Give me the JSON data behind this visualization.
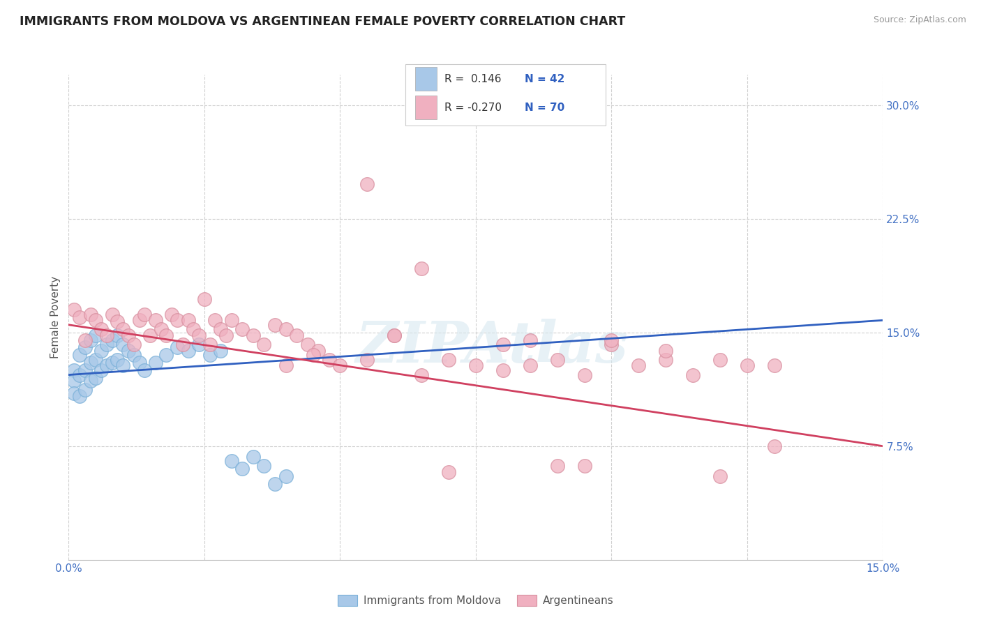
{
  "title": "IMMIGRANTS FROM MOLDOVA VS ARGENTINEAN FEMALE POVERTY CORRELATION CHART",
  "source_text": "Source: ZipAtlas.com",
  "ylabel": "Female Poverty",
  "xlim": [
    0.0,
    0.15
  ],
  "ylim": [
    0.0,
    0.32
  ],
  "yticks": [
    0.075,
    0.15,
    0.225,
    0.3
  ],
  "ytick_labels": [
    "7.5%",
    "15.0%",
    "22.5%",
    "30.0%"
  ],
  "xticks": [
    0.0,
    0.025,
    0.05,
    0.075,
    0.1,
    0.125,
    0.15
  ],
  "xtick_labels": [
    "0.0%",
    "",
    "",
    "",
    "",
    "",
    "15.0%"
  ],
  "legend_r1": "R =  0.146",
  "legend_n1": "N = 42",
  "legend_r2": "R = -0.270",
  "legend_n2": "N = 70",
  "color_blue": "#a8c8e8",
  "color_pink": "#f0b0c0",
  "color_blue_line": "#3060c0",
  "color_pink_line": "#d04060",
  "color_blue_text": "#3060c0",
  "watermark": "ZIPAtlas",
  "blue_scatter_x": [
    0.001,
    0.001,
    0.001,
    0.002,
    0.002,
    0.002,
    0.003,
    0.003,
    0.003,
    0.004,
    0.004,
    0.004,
    0.005,
    0.005,
    0.005,
    0.006,
    0.006,
    0.007,
    0.007,
    0.008,
    0.008,
    0.009,
    0.009,
    0.01,
    0.01,
    0.011,
    0.012,
    0.013,
    0.014,
    0.016,
    0.018,
    0.02,
    0.022,
    0.024,
    0.026,
    0.028,
    0.03,
    0.032,
    0.034,
    0.036,
    0.038,
    0.04
  ],
  "blue_scatter_y": [
    0.125,
    0.118,
    0.11,
    0.135,
    0.122,
    0.108,
    0.14,
    0.125,
    0.112,
    0.145,
    0.13,
    0.118,
    0.148,
    0.132,
    0.12,
    0.138,
    0.125,
    0.142,
    0.128,
    0.145,
    0.13,
    0.148,
    0.132,
    0.142,
    0.128,
    0.138,
    0.135,
    0.13,
    0.125,
    0.13,
    0.135,
    0.14,
    0.138,
    0.142,
    0.135,
    0.138,
    0.065,
    0.06,
    0.068,
    0.062,
    0.05,
    0.055
  ],
  "pink_scatter_x": [
    0.001,
    0.002,
    0.003,
    0.004,
    0.005,
    0.006,
    0.007,
    0.008,
    0.009,
    0.01,
    0.011,
    0.012,
    0.013,
    0.014,
    0.015,
    0.016,
    0.017,
    0.018,
    0.019,
    0.02,
    0.021,
    0.022,
    0.023,
    0.024,
    0.025,
    0.026,
    0.027,
    0.028,
    0.029,
    0.03,
    0.032,
    0.034,
    0.036,
    0.038,
    0.04,
    0.042,
    0.044,
    0.046,
    0.048,
    0.05,
    0.055,
    0.06,
    0.065,
    0.07,
    0.075,
    0.08,
    0.085,
    0.09,
    0.095,
    0.1,
    0.105,
    0.11,
    0.115,
    0.12,
    0.125,
    0.13,
    0.055,
    0.065,
    0.085,
    0.095,
    0.04,
    0.045,
    0.06,
    0.07,
    0.08,
    0.09,
    0.1,
    0.11,
    0.12,
    0.13
  ],
  "pink_scatter_y": [
    0.165,
    0.16,
    0.145,
    0.162,
    0.158,
    0.152,
    0.148,
    0.162,
    0.157,
    0.152,
    0.148,
    0.142,
    0.158,
    0.162,
    0.148,
    0.158,
    0.152,
    0.148,
    0.162,
    0.158,
    0.142,
    0.158,
    0.152,
    0.148,
    0.172,
    0.142,
    0.158,
    0.152,
    0.148,
    0.158,
    0.152,
    0.148,
    0.142,
    0.155,
    0.152,
    0.148,
    0.142,
    0.138,
    0.132,
    0.128,
    0.132,
    0.148,
    0.122,
    0.132,
    0.128,
    0.142,
    0.128,
    0.132,
    0.122,
    0.142,
    0.128,
    0.132,
    0.122,
    0.132,
    0.128,
    0.075,
    0.248,
    0.192,
    0.145,
    0.062,
    0.128,
    0.135,
    0.148,
    0.058,
    0.125,
    0.062,
    0.145,
    0.138,
    0.055,
    0.128
  ],
  "blue_line_x": [
    0.0,
    0.15
  ],
  "blue_line_y": [
    0.122,
    0.158
  ],
  "pink_line_x": [
    0.0,
    0.15
  ],
  "pink_line_y": [
    0.155,
    0.075
  ],
  "background_color": "#ffffff",
  "grid_color": "#d0d0d0",
  "tick_color": "#4472c4",
  "title_color": "#222222",
  "title_fontsize": 12.5,
  "axis_label_fontsize": 11,
  "tick_fontsize": 11
}
